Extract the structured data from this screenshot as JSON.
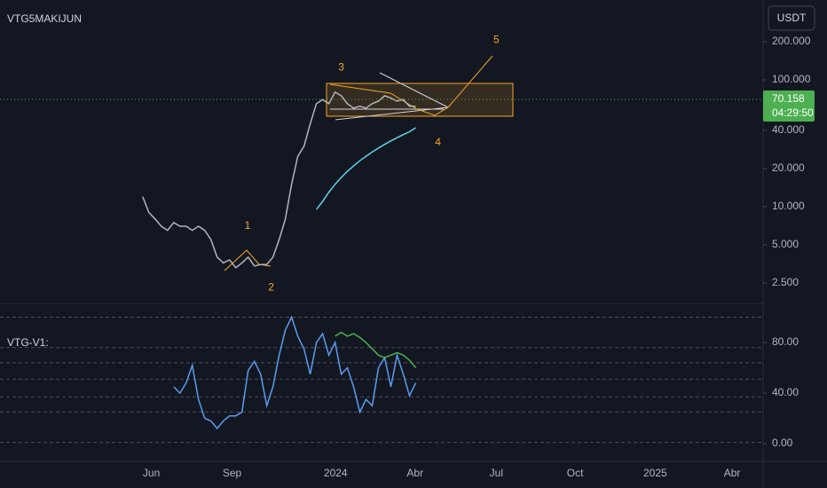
{
  "chart_data": [
    {
      "type": "line",
      "title": "VTG5MAKIJUN",
      "currency": "USDT",
      "log": true,
      "x": [
        0,
        1,
        2,
        3,
        4,
        5,
        6,
        7,
        8,
        9,
        10,
        11,
        12,
        13,
        14,
        15,
        16,
        17,
        18,
        19,
        20,
        21,
        22,
        23,
        24,
        25,
        26,
        27,
        28,
        29,
        30,
        31,
        32,
        33,
        34,
        35,
        36,
        37,
        38,
        39,
        40,
        41,
        42,
        43,
        44
      ],
      "series": [
        {
          "color": "#b2b5be",
          "values": [
            12,
            9,
            8,
            7,
            6.5,
            7.5,
            7,
            7,
            6.5,
            7,
            6.5,
            5.5,
            4,
            3.6,
            3.8,
            3.3,
            3.6,
            4,
            3.4,
            3.5,
            3.5,
            4,
            5.5,
            8,
            15,
            25,
            30,
            45,
            65,
            70,
            65,
            80,
            75,
            65,
            60,
            62,
            60,
            65,
            68,
            75,
            72,
            68,
            70,
            62,
            62
          ]
        },
        {
          "color": "#5fd3e8",
          "values": [
            null,
            null,
            null,
            null,
            null,
            null,
            null,
            null,
            null,
            null,
            null,
            null,
            null,
            null,
            null,
            null,
            null,
            null,
            null,
            null,
            null,
            null,
            null,
            null,
            null,
            null,
            null,
            null,
            9.5,
            11,
            13,
            15,
            17,
            19,
            21,
            23,
            25,
            27,
            29,
            31,
            33,
            35,
            37,
            39,
            42
          ]
        }
      ],
      "xlim": [
        -23,
        100
      ],
      "ylim": [
        1.78,
        427
      ],
      "yticks": [
        {
          "value": 200,
          "label": "200.000"
        },
        {
          "value": 100,
          "label": "100.000"
        },
        {
          "value": 40,
          "label": "40.000"
        },
        {
          "value": 20,
          "label": "20.000"
        },
        {
          "value": 10,
          "label": "10.000"
        },
        {
          "value": 5,
          "label": "5.000"
        },
        {
          "value": 2.5,
          "label": "2.500"
        }
      ],
      "last_price": {
        "value": 70.158,
        "countdown": "04:29:50",
        "color": "#4caf50"
      },
      "annotations": [
        {
          "text": "1",
          "x": 16.9,
          "y": 7
        },
        {
          "text": "2",
          "x": 20.7,
          "y": 2.3
        },
        {
          "text": "3",
          "x": 32,
          "y": 125
        },
        {
          "text": "4",
          "x": 47.6,
          "y": 32
        },
        {
          "text": "5",
          "x": 57,
          "y": 205
        }
      ]
    },
    {
      "type": "line",
      "title": "VTG-V1:",
      "x": [
        0,
        1,
        2,
        3,
        4,
        5,
        6,
        7,
        8,
        9,
        10,
        11,
        12,
        13,
        14,
        15,
        16,
        17,
        18,
        19,
        20,
        21,
        22,
        23,
        24,
        25,
        26,
        27,
        28,
        29,
        30,
        31,
        32,
        33,
        34,
        35,
        36,
        37,
        38,
        39,
        40,
        41,
        42,
        43,
        44
      ],
      "series": [
        {
          "color": "#5b9cf0",
          "values": [
            null,
            null,
            null,
            null,
            null,
            45,
            40,
            48,
            62,
            35,
            20,
            18,
            12,
            18,
            22,
            22,
            25,
            58,
            65,
            55,
            30,
            45,
            70,
            90,
            100,
            85,
            75,
            55,
            80,
            87,
            70,
            80,
            55,
            60,
            45,
            25,
            35,
            30,
            60,
            68,
            45,
            70,
            55,
            38,
            48
          ]
        },
        {
          "color": "#4caf50",
          "values": [
            null,
            null,
            null,
            null,
            null,
            null,
            null,
            null,
            null,
            null,
            null,
            null,
            null,
            null,
            null,
            null,
            null,
            null,
            null,
            null,
            null,
            null,
            null,
            null,
            null,
            null,
            null,
            null,
            null,
            null,
            null,
            85,
            88,
            85,
            87,
            84,
            80,
            75,
            70,
            68,
            70,
            72,
            70,
            66,
            60
          ]
        }
      ],
      "xlim": [
        -23,
        100
      ],
      "ylim": [
        -14,
        108.8
      ],
      "yticks": [
        {
          "value": 80,
          "label": "80.00"
        },
        {
          "value": 40,
          "label": "40.00"
        },
        {
          "value": 0,
          "label": "0.00"
        }
      ],
      "levels": [
        100,
        76,
        64,
        51,
        37,
        25,
        1
      ],
      "xticks": [
        {
          "value": 1.4,
          "label": "Jun"
        },
        {
          "value": 14.4,
          "label": "Sep"
        },
        {
          "value": 31.1,
          "label": "2024"
        },
        {
          "value": 43.9,
          "label": "Abr"
        },
        {
          "value": 57,
          "label": "Jul"
        },
        {
          "value": 69.7,
          "label": "Oct"
        },
        {
          "value": 82.6,
          "label": "2025"
        },
        {
          "value": 95,
          "label": "Abr"
        }
      ]
    }
  ]
}
